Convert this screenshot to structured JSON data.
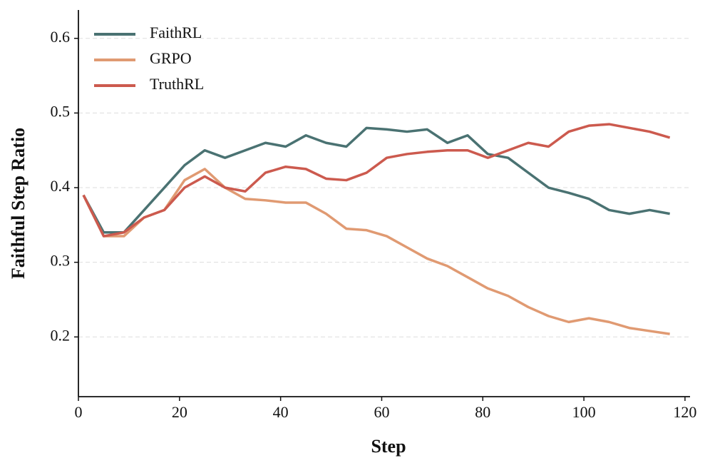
{
  "chart_data": {
    "type": "line",
    "xlabel": "Step",
    "ylabel": "Faithful Step Ratio",
    "x": [
      1,
      5,
      9,
      13,
      17,
      21,
      25,
      29,
      33,
      37,
      41,
      45,
      49,
      53,
      57,
      61,
      65,
      69,
      73,
      77,
      81,
      85,
      89,
      93,
      97,
      101,
      105,
      109,
      113,
      117
    ],
    "series": [
      {
        "name": "FaithRL",
        "color": "#4a7272",
        "values": [
          0.39,
          0.34,
          0.34,
          0.37,
          0.4,
          0.43,
          0.45,
          0.44,
          0.45,
          0.46,
          0.455,
          0.47,
          0.46,
          0.455,
          0.48,
          0.478,
          0.475,
          0.478,
          0.46,
          0.47,
          0.445,
          0.44,
          0.42,
          0.4,
          0.393,
          0.385,
          0.37,
          0.365,
          0.37,
          0.365
        ]
      },
      {
        "name": "GRPO",
        "color": "#e09a72",
        "values": [
          0.39,
          0.335,
          0.335,
          0.36,
          0.37,
          0.41,
          0.425,
          0.4,
          0.385,
          0.383,
          0.38,
          0.38,
          0.365,
          0.345,
          0.343,
          0.335,
          0.32,
          0.305,
          0.295,
          0.28,
          0.265,
          0.255,
          0.24,
          0.228,
          0.22,
          0.225,
          0.22,
          0.212,
          0.208,
          0.204
        ]
      },
      {
        "name": "TruthRL",
        "color": "#cc5a4e",
        "values": [
          0.39,
          0.335,
          0.34,
          0.36,
          0.37,
          0.4,
          0.415,
          0.4,
          0.395,
          0.42,
          0.428,
          0.425,
          0.412,
          0.41,
          0.42,
          0.44,
          0.445,
          0.448,
          0.45,
          0.45,
          0.44,
          0.45,
          0.46,
          0.455,
          0.475,
          0.483,
          0.485,
          0.48,
          0.475,
          0.467
        ]
      }
    ],
    "xlim": [
      0,
      121
    ],
    "xticks": [
      0,
      20,
      40,
      60,
      80,
      100,
      120
    ],
    "ylim": [
      0.12,
      0.638
    ],
    "yticks": [
      0.2,
      0.3,
      0.4,
      0.5,
      0.6
    ],
    "grid": true,
    "legend": "upper left"
  }
}
